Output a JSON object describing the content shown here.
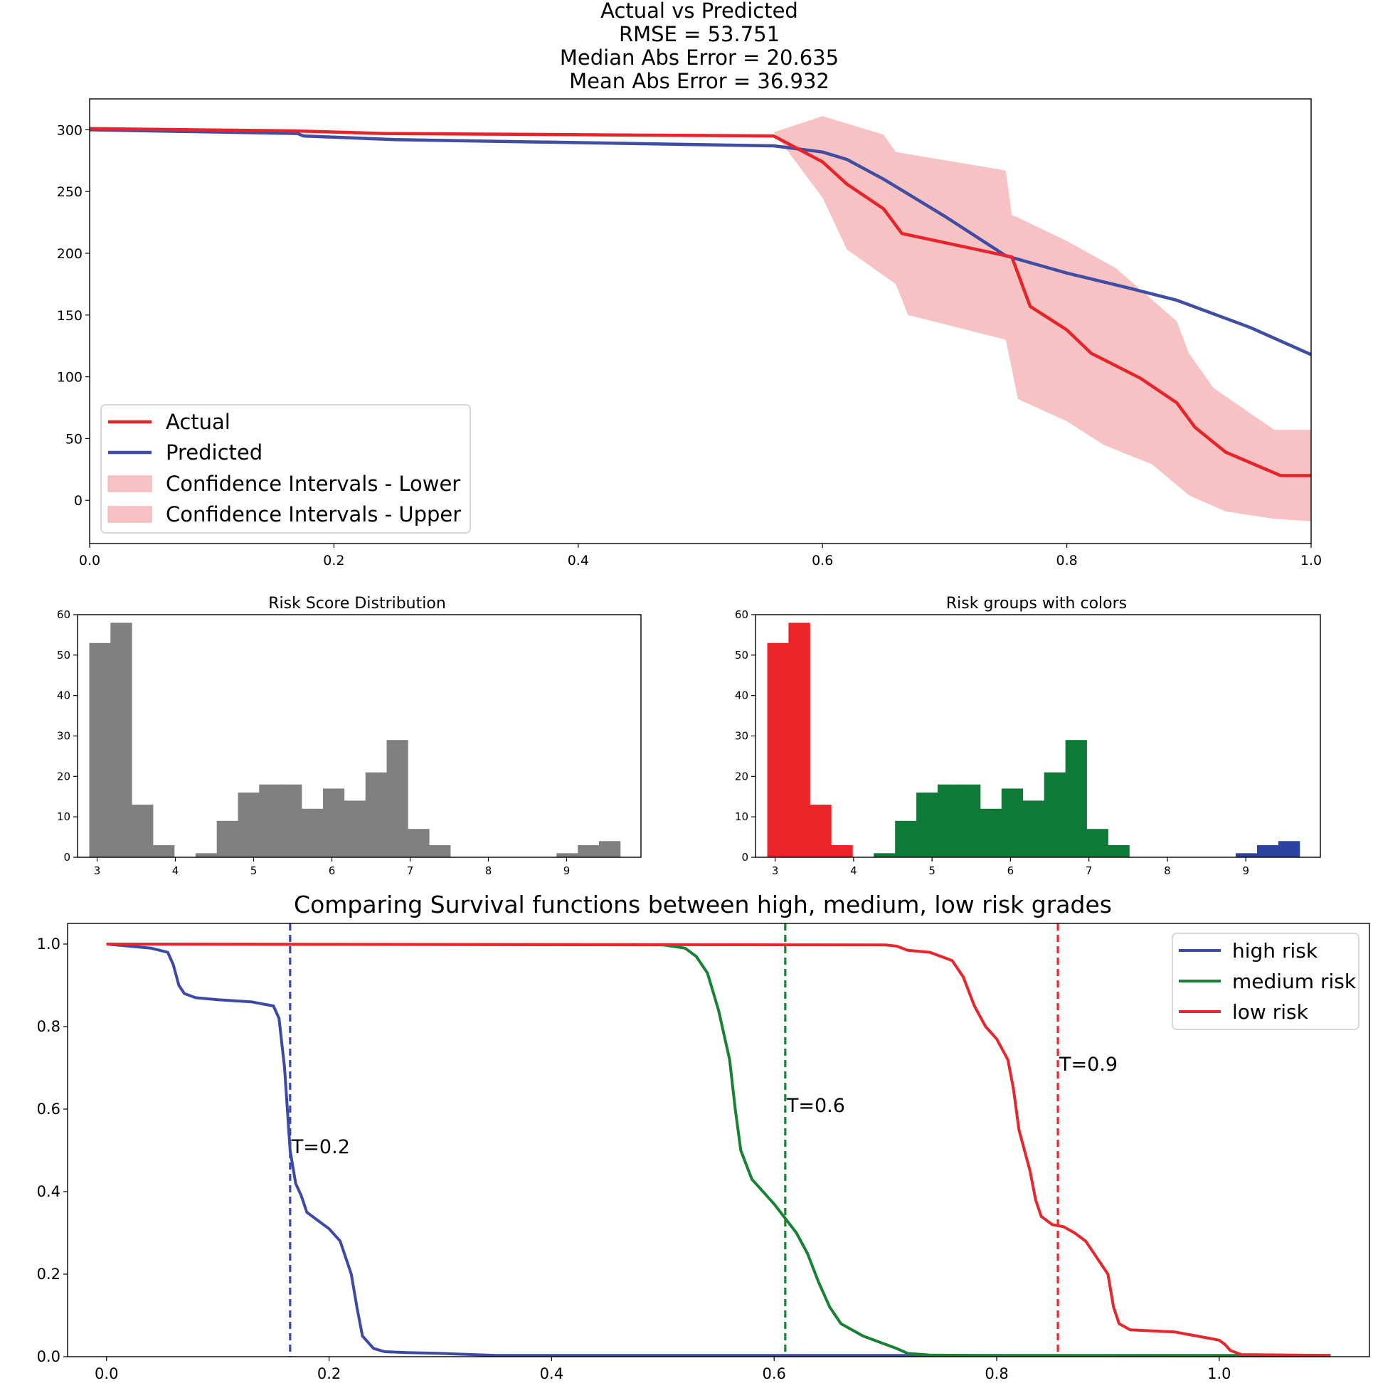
{
  "colors": {
    "actual": "#e8242b",
    "predicted": "#3f4ea3",
    "ci_fill": "#f7c2c3",
    "hist_gray": "#808080",
    "risk_high": "#ec2329",
    "risk_medium": "#0f7a37",
    "risk_low": "#2c43a0",
    "surv_high": "#3c4aa6",
    "surv_medium": "#178332",
    "surv_low": "#e8262b"
  },
  "chart_data": [
    {
      "type": "line",
      "title": "Actual vs Predicted",
      "subtitles": [
        "RMSE = 53.751",
        "Median Abs Error = 20.635",
        "Mean Abs Error = 36.932"
      ],
      "xlim": [
        0,
        1
      ],
      "ylim": [
        -35,
        325
      ],
      "x_ticks": [
        "0.0",
        "0.2",
        "0.4",
        "0.6",
        "0.8",
        "1.0"
      ],
      "y_ticks": [
        "0",
        "50",
        "100",
        "150",
        "200",
        "250",
        "300"
      ],
      "legend_position": "lower-left",
      "series": [
        {
          "name": "Actual",
          "x": [
            0,
            0.17,
            0.24,
            0.56,
            0.6,
            0.62,
            0.65,
            0.665,
            0.755,
            0.77,
            0.8,
            0.82,
            0.86,
            0.89,
            0.905,
            0.93,
            0.975,
            1.0
          ],
          "y": [
            301,
            299,
            297,
            295,
            274,
            256,
            236,
            216,
            197,
            157,
            138,
            119,
            99,
            79,
            59,
            39,
            20,
            20
          ]
        },
        {
          "name": "Predicted",
          "x": [
            0,
            0.17,
            0.175,
            0.25,
            0.56,
            0.6,
            0.62,
            0.65,
            0.7,
            0.75,
            0.8,
            0.85,
            0.89,
            0.95,
            1.0
          ],
          "y": [
            300,
            297,
            295,
            292,
            287,
            282,
            276,
            260,
            230,
            198,
            184,
            172,
            162,
            140,
            118
          ]
        }
      ],
      "bands": [
        {
          "name": "Confidence Intervals - Lower",
          "x": [
            0,
            0.56,
            0.6,
            0.62,
            0.66,
            0.67,
            0.75,
            0.76,
            0.8,
            0.83,
            0.87,
            0.9,
            0.93,
            0.97,
            1.0
          ],
          "y": [
            300,
            298,
            245,
            203,
            175,
            150,
            130,
            82,
            64,
            45,
            29,
            4,
            -9,
            -15,
            -17
          ]
        },
        {
          "name": "Confidence Intervals - Upper",
          "x": [
            0,
            0.56,
            0.6,
            0.65,
            0.66,
            0.75,
            0.755,
            0.76,
            0.8,
            0.84,
            0.89,
            0.9,
            0.92,
            0.97,
            1.0
          ],
          "y": [
            300,
            298,
            311,
            296,
            282,
            267,
            231,
            229,
            210,
            188,
            145,
            119,
            91,
            57,
            57
          ]
        }
      ]
    },
    {
      "type": "bar",
      "title": "Risk Score Distribution",
      "xlim": [
        2.75,
        9.95
      ],
      "ylim": [
        0,
        60
      ],
      "x_ticks": [
        "3",
        "4",
        "5",
        "6",
        "7",
        "8",
        "9"
      ],
      "y_ticks": [
        "0",
        "10",
        "20",
        "30",
        "40",
        "50",
        "60"
      ],
      "bin_edges": [
        2.9,
        3.171,
        3.443,
        3.714,
        3.986,
        4.257,
        4.529,
        4.8,
        5.071,
        5.343,
        5.614,
        5.886,
        6.157,
        6.429,
        6.7,
        6.971,
        7.243,
        7.514,
        7.786,
        8.057,
        8.329,
        8.6,
        8.871,
        9.143,
        9.414,
        9.686
      ],
      "values": [
        53,
        58,
        13,
        3,
        0,
        1,
        9,
        16,
        18,
        18,
        12,
        17,
        14,
        21,
        29,
        7,
        3,
        0,
        0,
        0,
        0,
        0,
        1,
        3,
        4
      ]
    },
    {
      "type": "bar",
      "title": "Risk groups with colors",
      "xlim": [
        2.75,
        9.95
      ],
      "ylim": [
        0,
        60
      ],
      "x_ticks": [
        "3",
        "4",
        "5",
        "6",
        "7",
        "8",
        "9"
      ],
      "y_ticks": [
        "0",
        "10",
        "20",
        "30",
        "40",
        "50",
        "60"
      ],
      "bin_edges": [
        2.9,
        3.171,
        3.443,
        3.714,
        3.986,
        4.257,
        4.529,
        4.8,
        5.071,
        5.343,
        5.614,
        5.886,
        6.157,
        6.429,
        6.7,
        6.971,
        7.243,
        7.514,
        7.786,
        8.057,
        8.329,
        8.6,
        8.871,
        9.143,
        9.414,
        9.686
      ],
      "values": [
        53,
        58,
        13,
        3,
        0,
        1,
        9,
        16,
        18,
        18,
        12,
        17,
        14,
        21,
        29,
        7,
        3,
        0,
        0,
        0,
        0,
        0,
        1,
        3,
        4
      ],
      "groups": [
        "high",
        "high",
        "high",
        "high",
        "high",
        "medium",
        "medium",
        "medium",
        "medium",
        "medium",
        "medium",
        "medium",
        "medium",
        "medium",
        "medium",
        "medium",
        "medium",
        "low",
        "low",
        "low",
        "low",
        "low",
        "low",
        "low",
        "low"
      ]
    },
    {
      "type": "line",
      "title": "Comparing Survival functions between high, medium, low risk grades",
      "xlim": [
        -0.035,
        1.135
      ],
      "ylim": [
        0,
        1.05
      ],
      "x_ticks": [
        "0.0",
        "0.2",
        "0.4",
        "0.6",
        "0.8",
        "1.0"
      ],
      "y_ticks": [
        "0.0",
        "0.2",
        "0.4",
        "0.6",
        "0.8",
        "1.0"
      ],
      "legend_position": "top-right",
      "series": [
        {
          "name": "high risk",
          "x": [
            0,
            0.04,
            0.055,
            0.06,
            0.065,
            0.07,
            0.08,
            0.1,
            0.13,
            0.15,
            0.155,
            0.16,
            0.163,
            0.165,
            0.17,
            0.175,
            0.18,
            0.19,
            0.2,
            0.21,
            0.22,
            0.225,
            0.23,
            0.24,
            0.25,
            0.27,
            0.3,
            0.35,
            1.1
          ],
          "y": [
            1.0,
            0.99,
            0.98,
            0.95,
            0.9,
            0.88,
            0.87,
            0.865,
            0.86,
            0.85,
            0.82,
            0.7,
            0.58,
            0.5,
            0.42,
            0.39,
            0.35,
            0.33,
            0.31,
            0.28,
            0.2,
            0.12,
            0.05,
            0.02,
            0.012,
            0.01,
            0.008,
            0.003,
            0.003
          ]
        },
        {
          "name": "medium risk",
          "x": [
            0,
            0.5,
            0.52,
            0.53,
            0.54,
            0.55,
            0.56,
            0.565,
            0.57,
            0.58,
            0.6,
            0.62,
            0.63,
            0.64,
            0.65,
            0.66,
            0.68,
            0.7,
            0.71,
            0.72,
            0.74,
            0.78,
            1.1
          ],
          "y": [
            1.0,
            0.998,
            0.99,
            0.97,
            0.93,
            0.84,
            0.72,
            0.6,
            0.5,
            0.43,
            0.37,
            0.3,
            0.25,
            0.18,
            0.12,
            0.08,
            0.05,
            0.03,
            0.02,
            0.008,
            0.004,
            0.003,
            0.002
          ]
        },
        {
          "name": "low risk",
          "x": [
            0,
            0.7,
            0.71,
            0.72,
            0.74,
            0.76,
            0.77,
            0.78,
            0.79,
            0.8,
            0.81,
            0.815,
            0.82,
            0.83,
            0.835,
            0.84,
            0.85,
            0.86,
            0.87,
            0.88,
            0.9,
            0.905,
            0.91,
            0.92,
            0.96,
            0.97,
            0.98,
            0.99,
            1.0,
            1.005,
            1.01,
            1.02,
            1.1
          ],
          "y": [
            1.0,
            0.998,
            0.995,
            0.985,
            0.98,
            0.96,
            0.92,
            0.85,
            0.8,
            0.77,
            0.72,
            0.65,
            0.55,
            0.45,
            0.38,
            0.34,
            0.32,
            0.315,
            0.3,
            0.28,
            0.2,
            0.12,
            0.08,
            0.065,
            0.06,
            0.055,
            0.05,
            0.045,
            0.04,
            0.03,
            0.015,
            0.005,
            0.003
          ]
        }
      ],
      "thresholds": [
        {
          "x": 0.165,
          "label": "T=0.2",
          "label_y": 0.51,
          "series": "high risk"
        },
        {
          "x": 0.61,
          "label": "T=0.6",
          "label_y": 0.61,
          "series": "medium risk"
        },
        {
          "x": 0.855,
          "label": "T=0.9",
          "label_y": 0.71,
          "series": "low risk"
        }
      ]
    }
  ]
}
